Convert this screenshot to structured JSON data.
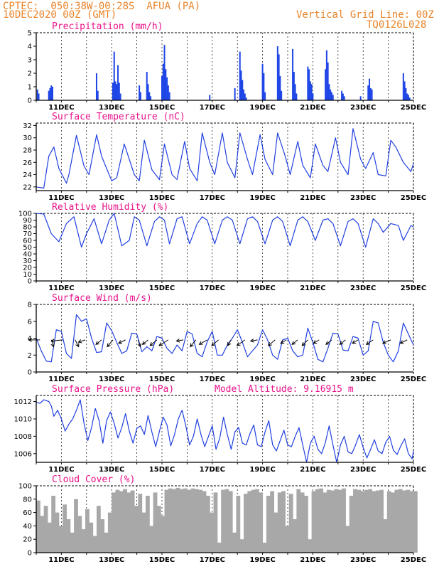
{
  "header": {
    "station": "CPTEC:  050:38W-00:28S  AFUA (PA)",
    "date": "10DEC2020 00Z (GMT)",
    "grid_note": "Vertical Grid Line: 00Z",
    "model": "TQ0126L028"
  },
  "colors": {
    "series": "#2040e0",
    "bars": "#1e46e6",
    "cloud": "#a8a8a8",
    "title": "#e8128a",
    "header": "#e8842a"
  },
  "x_axis": {
    "start": "10DEC2020 00Z",
    "end": "25DEC2020 00Z",
    "tick_labels": [
      "11DEC",
      "13DEC",
      "15DEC",
      "17DEC",
      "19DEC",
      "21DEC",
      "23DEC",
      "25DEC"
    ],
    "tick_days": [
      11,
      13,
      15,
      17,
      19,
      21,
      23,
      25
    ]
  },
  "chart_data": [
    {
      "type": "bar",
      "title": "Precipitation (mm/h)",
      "ylim": [
        0,
        5
      ],
      "yticks": [
        "0",
        "1",
        "2",
        "3",
        "4",
        "5"
      ],
      "x": [
        10.05,
        10.1,
        10.5,
        10.55,
        10.6,
        10.65,
        12.4,
        12.45,
        13.05,
        13.1,
        13.15,
        13.2,
        13.25,
        13.3,
        13.35,
        14.1,
        14.15,
        14.4,
        14.45,
        14.5,
        14.55,
        15.0,
        15.05,
        15.1,
        15.15,
        15.2,
        15.25,
        15.3,
        16.9,
        17.9,
        18.1,
        18.15,
        18.2,
        18.25,
        18.3,
        18.35,
        19.0,
        19.05,
        19.1,
        19.6,
        19.65,
        19.7,
        19.75,
        20.2,
        20.25,
        20.3,
        20.35,
        20.8,
        20.85,
        20.9,
        20.95,
        21.0,
        21.5,
        21.55,
        21.6,
        21.65,
        21.7,
        21.75,
        21.8,
        22.15,
        22.2,
        22.25,
        22.9,
        23.2,
        23.25,
        23.3,
        23.35,
        24.6,
        24.65,
        24.7,
        24.75,
        24.8,
        24.85
      ],
      "values": [
        0.8,
        0.5,
        0.7,
        0.9,
        1.1,
        1.0,
        2.0,
        0.7,
        1.3,
        3.6,
        1.4,
        1.2,
        2.6,
        1.3,
        0.5,
        1.1,
        0.6,
        2.1,
        1.2,
        0.6,
        0.3,
        1.8,
        2.7,
        4.1,
        2.3,
        1.7,
        1.1,
        0.6,
        0.4,
        0.9,
        3.6,
        2.2,
        1.5,
        0.8,
        0.5,
        0.2,
        2.7,
        2.0,
        0.6,
        4.0,
        3.4,
        1.8,
        0.7,
        3.8,
        2.1,
        1.2,
        0.5,
        2.5,
        2.3,
        1.4,
        1.2,
        0.5,
        2.3,
        3.7,
        2.8,
        1.2,
        0.8,
        0.6,
        0.4,
        0.7,
        0.5,
        0.3,
        0.3,
        1.1,
        1.6,
        0.9,
        0.8,
        2.0,
        1.4,
        0.9,
        0.5,
        0.4,
        0.2
      ]
    },
    {
      "type": "line",
      "title": "Surface Temperature (nC)",
      "ylim": [
        21,
        32
      ],
      "yticks": [
        "22",
        "24",
        "26",
        "28",
        "30",
        "32"
      ],
      "x": [
        10.0,
        10.3,
        10.5,
        10.7,
        10.9,
        11.2,
        11.3,
        11.6,
        11.9,
        12.1,
        12.4,
        12.6,
        13.0,
        13.2,
        13.5,
        13.9,
        14.1,
        14.3,
        14.6,
        14.9,
        15.1,
        15.4,
        15.6,
        15.9,
        16.1,
        16.4,
        16.6,
        16.9,
        17.1,
        17.4,
        17.6,
        17.9,
        18.1,
        18.4,
        18.6,
        18.9,
        19.1,
        19.4,
        19.6,
        19.9,
        20.1,
        20.4,
        20.6,
        20.9,
        21.1,
        21.4,
        21.6,
        21.9,
        22.1,
        22.4,
        22.6,
        22.9,
        23.1,
        23.4,
        23.6,
        23.9,
        24.1,
        24.3,
        24.6,
        24.9,
        25.0
      ],
      "values": [
        22.0,
        21.8,
        27.0,
        28.5,
        25.0,
        22.6,
        24.0,
        30.4,
        25.4,
        24.0,
        30.5,
        27.0,
        23.0,
        23.5,
        29.0,
        24.0,
        23.0,
        29.6,
        24.8,
        23.2,
        29.0,
        24.0,
        23.2,
        29.4,
        25.0,
        23.0,
        30.8,
        26.0,
        24.0,
        30.8,
        26.0,
        23.5,
        30.8,
        26.5,
        24.0,
        30.5,
        26.5,
        24.0,
        30.8,
        27.0,
        24.0,
        29.4,
        25.5,
        23.5,
        29.0,
        25.5,
        24.5,
        30.0,
        26.0,
        24.0,
        31.5,
        26.5,
        25.0,
        27.6,
        24.0,
        23.8,
        29.6,
        28.5,
        26.0,
        24.5,
        25.8
      ]
    },
    {
      "type": "line",
      "title": "Relative Humidity (%)",
      "ylim": [
        0,
        100
      ],
      "yticks": [
        "0",
        "10",
        "20",
        "30",
        "40",
        "50",
        "60",
        "70",
        "80",
        "90",
        "100"
      ],
      "x": [
        10.0,
        10.3,
        10.6,
        10.9,
        11.2,
        11.5,
        11.8,
        12.0,
        12.3,
        12.6,
        12.9,
        13.1,
        13.4,
        13.7,
        13.9,
        14.1,
        14.4,
        14.7,
        14.9,
        15.1,
        15.3,
        15.6,
        15.8,
        16.1,
        16.4,
        16.6,
        16.8,
        17.1,
        17.4,
        17.6,
        17.8,
        18.1,
        18.4,
        18.6,
        18.8,
        19.1,
        19.4,
        19.6,
        19.8,
        20.1,
        20.4,
        20.6,
        20.8,
        21.1,
        21.4,
        21.6,
        21.8,
        22.1,
        22.4,
        22.6,
        22.8,
        23.1,
        23.4,
        23.6,
        23.8,
        24.1,
        24.4,
        24.6,
        24.9,
        25.0
      ],
      "values": [
        100.0,
        99.0,
        70.0,
        58.0,
        85.0,
        95.0,
        50.0,
        70.0,
        92.0,
        55.0,
        90.0,
        100.0,
        52.0,
        60.0,
        95.0,
        90.0,
        52.0,
        88.0,
        95.0,
        90.0,
        55.0,
        92.0,
        95.0,
        55.0,
        85.0,
        95.0,
        90.0,
        55.0,
        90.0,
        95.0,
        90.0,
        55.0,
        92.0,
        95.0,
        88.0,
        55.0,
        90.0,
        95.0,
        88.0,
        52.0,
        90.0,
        95.0,
        88.0,
        60.0,
        90.0,
        92.0,
        85.0,
        52.0,
        88.0,
        92.0,
        85.0,
        50.0,
        92.0,
        85.0,
        72.0,
        85.0,
        82.0,
        60.0,
        82.0,
        80.0
      ]
    },
    {
      "type": "line",
      "title": "Surface Wind (m/s)",
      "ylim": [
        0,
        8
      ],
      "yticks": [
        "0",
        "2",
        "4",
        "6",
        "8"
      ],
      "x": [
        10.0,
        10.2,
        10.4,
        10.6,
        10.8,
        11.0,
        11.2,
        11.4,
        11.6,
        11.8,
        12.0,
        12.2,
        12.4,
        12.6,
        12.8,
        13.0,
        13.2,
        13.4,
        13.6,
        13.8,
        14.0,
        14.2,
        14.4,
        14.6,
        14.8,
        15.0,
        15.2,
        15.4,
        15.6,
        15.8,
        16.0,
        16.2,
        16.4,
        16.6,
        16.8,
        17.0,
        17.2,
        17.4,
        17.6,
        17.8,
        18.0,
        18.2,
        18.4,
        18.6,
        18.8,
        19.0,
        19.2,
        19.4,
        19.6,
        19.8,
        20.0,
        20.2,
        20.4,
        20.6,
        20.8,
        21.0,
        21.2,
        21.4,
        21.6,
        21.8,
        22.0,
        22.2,
        22.4,
        22.6,
        22.8,
        23.0,
        23.2,
        23.4,
        23.6,
        23.8,
        24.0,
        24.2,
        24.4,
        24.6,
        24.8,
        25.0
      ],
      "values": [
        4.0,
        2.5,
        1.3,
        1.2,
        5.0,
        4.8,
        2.2,
        1.6,
        6.8,
        6.0,
        6.3,
        4.0,
        2.3,
        2.4,
        5.8,
        4.9,
        3.5,
        2.2,
        2.5,
        4.6,
        4.5,
        2.4,
        3.0,
        2.5,
        4.2,
        4.0,
        2.8,
        2.2,
        3.2,
        2.5,
        4.8,
        4.5,
        2.2,
        1.8,
        3.6,
        4.8,
        2.0,
        2.0,
        3.2,
        4.0,
        5.0,
        3.5,
        1.8,
        2.5,
        3.2,
        5.0,
        3.8,
        2.0,
        1.5,
        3.8,
        4.0,
        2.5,
        1.8,
        2.0,
        5.2,
        3.5,
        1.5,
        1.2,
        2.8,
        4.6,
        4.5,
        2.6,
        2.5,
        4.2,
        4.0,
        2.0,
        2.5,
        6.0,
        5.8,
        3.5,
        2.0,
        1.2,
        2.5,
        5.8,
        4.5,
        3.2
      ],
      "wind_vectors": [
        {
          "x": 10.15,
          "u": -1.0,
          "v": 0.0
        },
        {
          "x": 10.6,
          "u": 0.2,
          "v": 0.6
        },
        {
          "x": 11.05,
          "u": -1.0,
          "v": 0.1
        },
        {
          "x": 11.55,
          "u": 0.3,
          "v": 0.6
        },
        {
          "x": 11.95,
          "u": -0.6,
          "v": 0.2
        },
        {
          "x": 12.6,
          "u": -0.5,
          "v": 0.4
        },
        {
          "x": 13.05,
          "u": -0.5,
          "v": 0.6
        },
        {
          "x": 13.55,
          "u": -0.6,
          "v": 0.3
        },
        {
          "x": 14.05,
          "u": 0.2,
          "v": 0.6
        },
        {
          "x": 14.45,
          "u": -0.5,
          "v": 0.4
        },
        {
          "x": 14.8,
          "u": -0.6,
          "v": 0.5
        },
        {
          "x": 15.25,
          "u": -0.8,
          "v": 0.5
        },
        {
          "x": 15.85,
          "u": -0.6,
          "v": 0.1
        },
        {
          "x": 16.35,
          "u": -0.5,
          "v": 0.6
        },
        {
          "x": 16.8,
          "u": -0.7,
          "v": 0.4
        },
        {
          "x": 17.25,
          "u": -0.6,
          "v": 0.5
        },
        {
          "x": 17.75,
          "u": -0.3,
          "v": 0.5
        },
        {
          "x": 18.3,
          "u": -0.7,
          "v": 0.5
        },
        {
          "x": 18.8,
          "u": -0.6,
          "v": 0.1
        },
        {
          "x": 19.5,
          "u": -0.6,
          "v": 0.5
        },
        {
          "x": 19.95,
          "u": -0.5,
          "v": 0.3
        },
        {
          "x": 20.4,
          "u": -0.5,
          "v": 0.4
        },
        {
          "x": 20.8,
          "u": -0.5,
          "v": 0.5
        },
        {
          "x": 21.25,
          "u": -0.5,
          "v": 0.3
        },
        {
          "x": 21.75,
          "u": -0.5,
          "v": 0.4
        },
        {
          "x": 22.3,
          "u": -0.5,
          "v": 0.4
        },
        {
          "x": 22.8,
          "u": -0.5,
          "v": 0.3
        },
        {
          "x": 23.4,
          "u": -0.6,
          "v": 0.4
        },
        {
          "x": 24.1,
          "u": -0.7,
          "v": 0.3
        },
        {
          "x": 24.75,
          "u": -0.6,
          "v": 0.3
        }
      ]
    },
    {
      "type": "line",
      "title": "Surface Pressure (hPa)",
      "annotation": "Model Altitude: 9.16915 m",
      "ylim": [
        1005,
        1013
      ],
      "yticks": [
        "1006",
        "1008",
        "1010",
        "1012"
      ],
      "x": [
        10.0,
        10.15,
        10.3,
        10.5,
        10.6,
        10.7,
        10.85,
        11.0,
        11.15,
        11.3,
        11.45,
        11.6,
        11.75,
        11.9,
        12.05,
        12.2,
        12.35,
        12.5,
        12.65,
        12.8,
        12.95,
        13.1,
        13.25,
        13.4,
        13.55,
        13.7,
        13.85,
        14.0,
        14.15,
        14.3,
        14.45,
        14.6,
        14.75,
        14.9,
        15.05,
        15.2,
        15.35,
        15.5,
        15.65,
        15.8,
        15.95,
        16.1,
        16.25,
        16.4,
        16.55,
        16.7,
        16.85,
        17.0,
        17.15,
        17.3,
        17.45,
        17.6,
        17.75,
        17.9,
        18.05,
        18.2,
        18.35,
        18.5,
        18.65,
        18.8,
        18.95,
        19.1,
        19.25,
        19.4,
        19.55,
        19.7,
        19.85,
        20.0,
        20.15,
        20.3,
        20.45,
        20.6,
        20.75,
        20.9,
        21.05,
        21.2,
        21.35,
        21.5,
        21.65,
        21.8,
        21.95,
        22.1,
        22.25,
        22.4,
        22.55,
        22.7,
        22.85,
        23.0,
        23.15,
        23.3,
        23.45,
        23.6,
        23.75,
        23.9,
        24.05,
        24.2,
        24.35,
        24.5,
        24.65,
        24.8,
        24.95,
        25.0
      ],
      "values": [
        1011.9,
        1011.8,
        1012.2,
        1012.0,
        1011.5,
        1010.3,
        1011.0,
        1010.0,
        1008.6,
        1009.4,
        1010.0,
        1011.0,
        1012.2,
        1009.5,
        1007.5,
        1009.0,
        1011.2,
        1009.8,
        1007.2,
        1009.8,
        1010.8,
        1009.5,
        1007.8,
        1009.0,
        1010.6,
        1008.6,
        1007.2,
        1008.9,
        1009.2,
        1008.2,
        1010.4,
        1008.5,
        1006.8,
        1008.6,
        1010.2,
        1009.3,
        1006.9,
        1008.2,
        1010.0,
        1011.0,
        1009.2,
        1007.0,
        1008.0,
        1010.0,
        1008.2,
        1006.8,
        1008.0,
        1009.2,
        1006.5,
        1007.8,
        1010.2,
        1008.2,
        1006.5,
        1008.5,
        1009.0,
        1007.2,
        1007.0,
        1008.3,
        1009.3,
        1007.0,
        1006.8,
        1008.5,
        1009.8,
        1007.0,
        1006.3,
        1007.5,
        1008.7,
        1007.0,
        1006.8,
        1008.0,
        1009.0,
        1007.0,
        1005.0,
        1007.2,
        1008.0,
        1006.5,
        1006.0,
        1007.3,
        1009.2,
        1007.0,
        1005.0,
        1007.0,
        1008.0,
        1006.2,
        1006.0,
        1007.0,
        1008.2,
        1006.7,
        1005.5,
        1006.5,
        1007.6,
        1006.3,
        1006.0,
        1007.3,
        1008.0,
        1006.4,
        1005.9,
        1006.9,
        1007.7,
        1006.0,
        1005.4,
        1006.3
      ]
    },
    {
      "type": "area",
      "title": "Cloud Cover (%)",
      "ylim": [
        0,
        100
      ],
      "yticks": [
        "0",
        "20",
        "40",
        "60",
        "80",
        "100"
      ],
      "x": [
        10.0,
        10.15,
        10.3,
        10.45,
        10.6,
        10.75,
        10.9,
        11.05,
        11.2,
        11.35,
        11.5,
        11.65,
        11.8,
        11.95,
        12.1,
        12.25,
        12.4,
        12.55,
        12.7,
        12.85,
        13.0,
        13.15,
        13.3,
        13.45,
        13.6,
        13.75,
        13.9,
        14.05,
        14.2,
        14.35,
        14.5,
        14.65,
        14.8,
        14.95,
        15.1,
        15.25,
        15.4,
        15.55,
        15.7,
        15.85,
        16.0,
        16.15,
        16.3,
        16.45,
        16.6,
        16.75,
        16.9,
        17.05,
        17.2,
        17.35,
        17.5,
        17.65,
        17.8,
        17.95,
        18.1,
        18.25,
        18.4,
        18.55,
        18.7,
        18.85,
        19.0,
        19.15,
        19.3,
        19.45,
        19.6,
        19.75,
        19.9,
        20.05,
        20.2,
        20.35,
        20.5,
        20.65,
        20.8,
        20.95,
        21.1,
        21.25,
        21.4,
        21.55,
        21.7,
        21.85,
        22.0,
        22.15,
        22.3,
        22.45,
        22.6,
        22.75,
        22.9,
        23.05,
        23.2,
        23.35,
        23.5,
        23.65,
        23.8,
        23.95,
        24.1,
        24.25,
        24.4,
        24.55,
        24.7,
        24.85,
        25.0
      ],
      "values": [
        78,
        55,
        70,
        45,
        85,
        60,
        40,
        72,
        50,
        30,
        80,
        55,
        35,
        65,
        45,
        25,
        70,
        50,
        30,
        60,
        90,
        94,
        92,
        95,
        90,
        93,
        70,
        88,
        60,
        85,
        40,
        90,
        70,
        55,
        94,
        96,
        95,
        97,
        95,
        96,
        94,
        96,
        95,
        94,
        92,
        85,
        60,
        90,
        15,
        94,
        95,
        92,
        30,
        85,
        20,
        88,
        92,
        94,
        95,
        90,
        15,
        85,
        92,
        60,
        90,
        92,
        40,
        88,
        50,
        95,
        90,
        85,
        20,
        92,
        95,
        96,
        90,
        94,
        93,
        95,
        94,
        96,
        40,
        85,
        95,
        94,
        92,
        94,
        95,
        92,
        93,
        94,
        50,
        92,
        90,
        94,
        95,
        93,
        94,
        92,
        92
      ]
    }
  ]
}
